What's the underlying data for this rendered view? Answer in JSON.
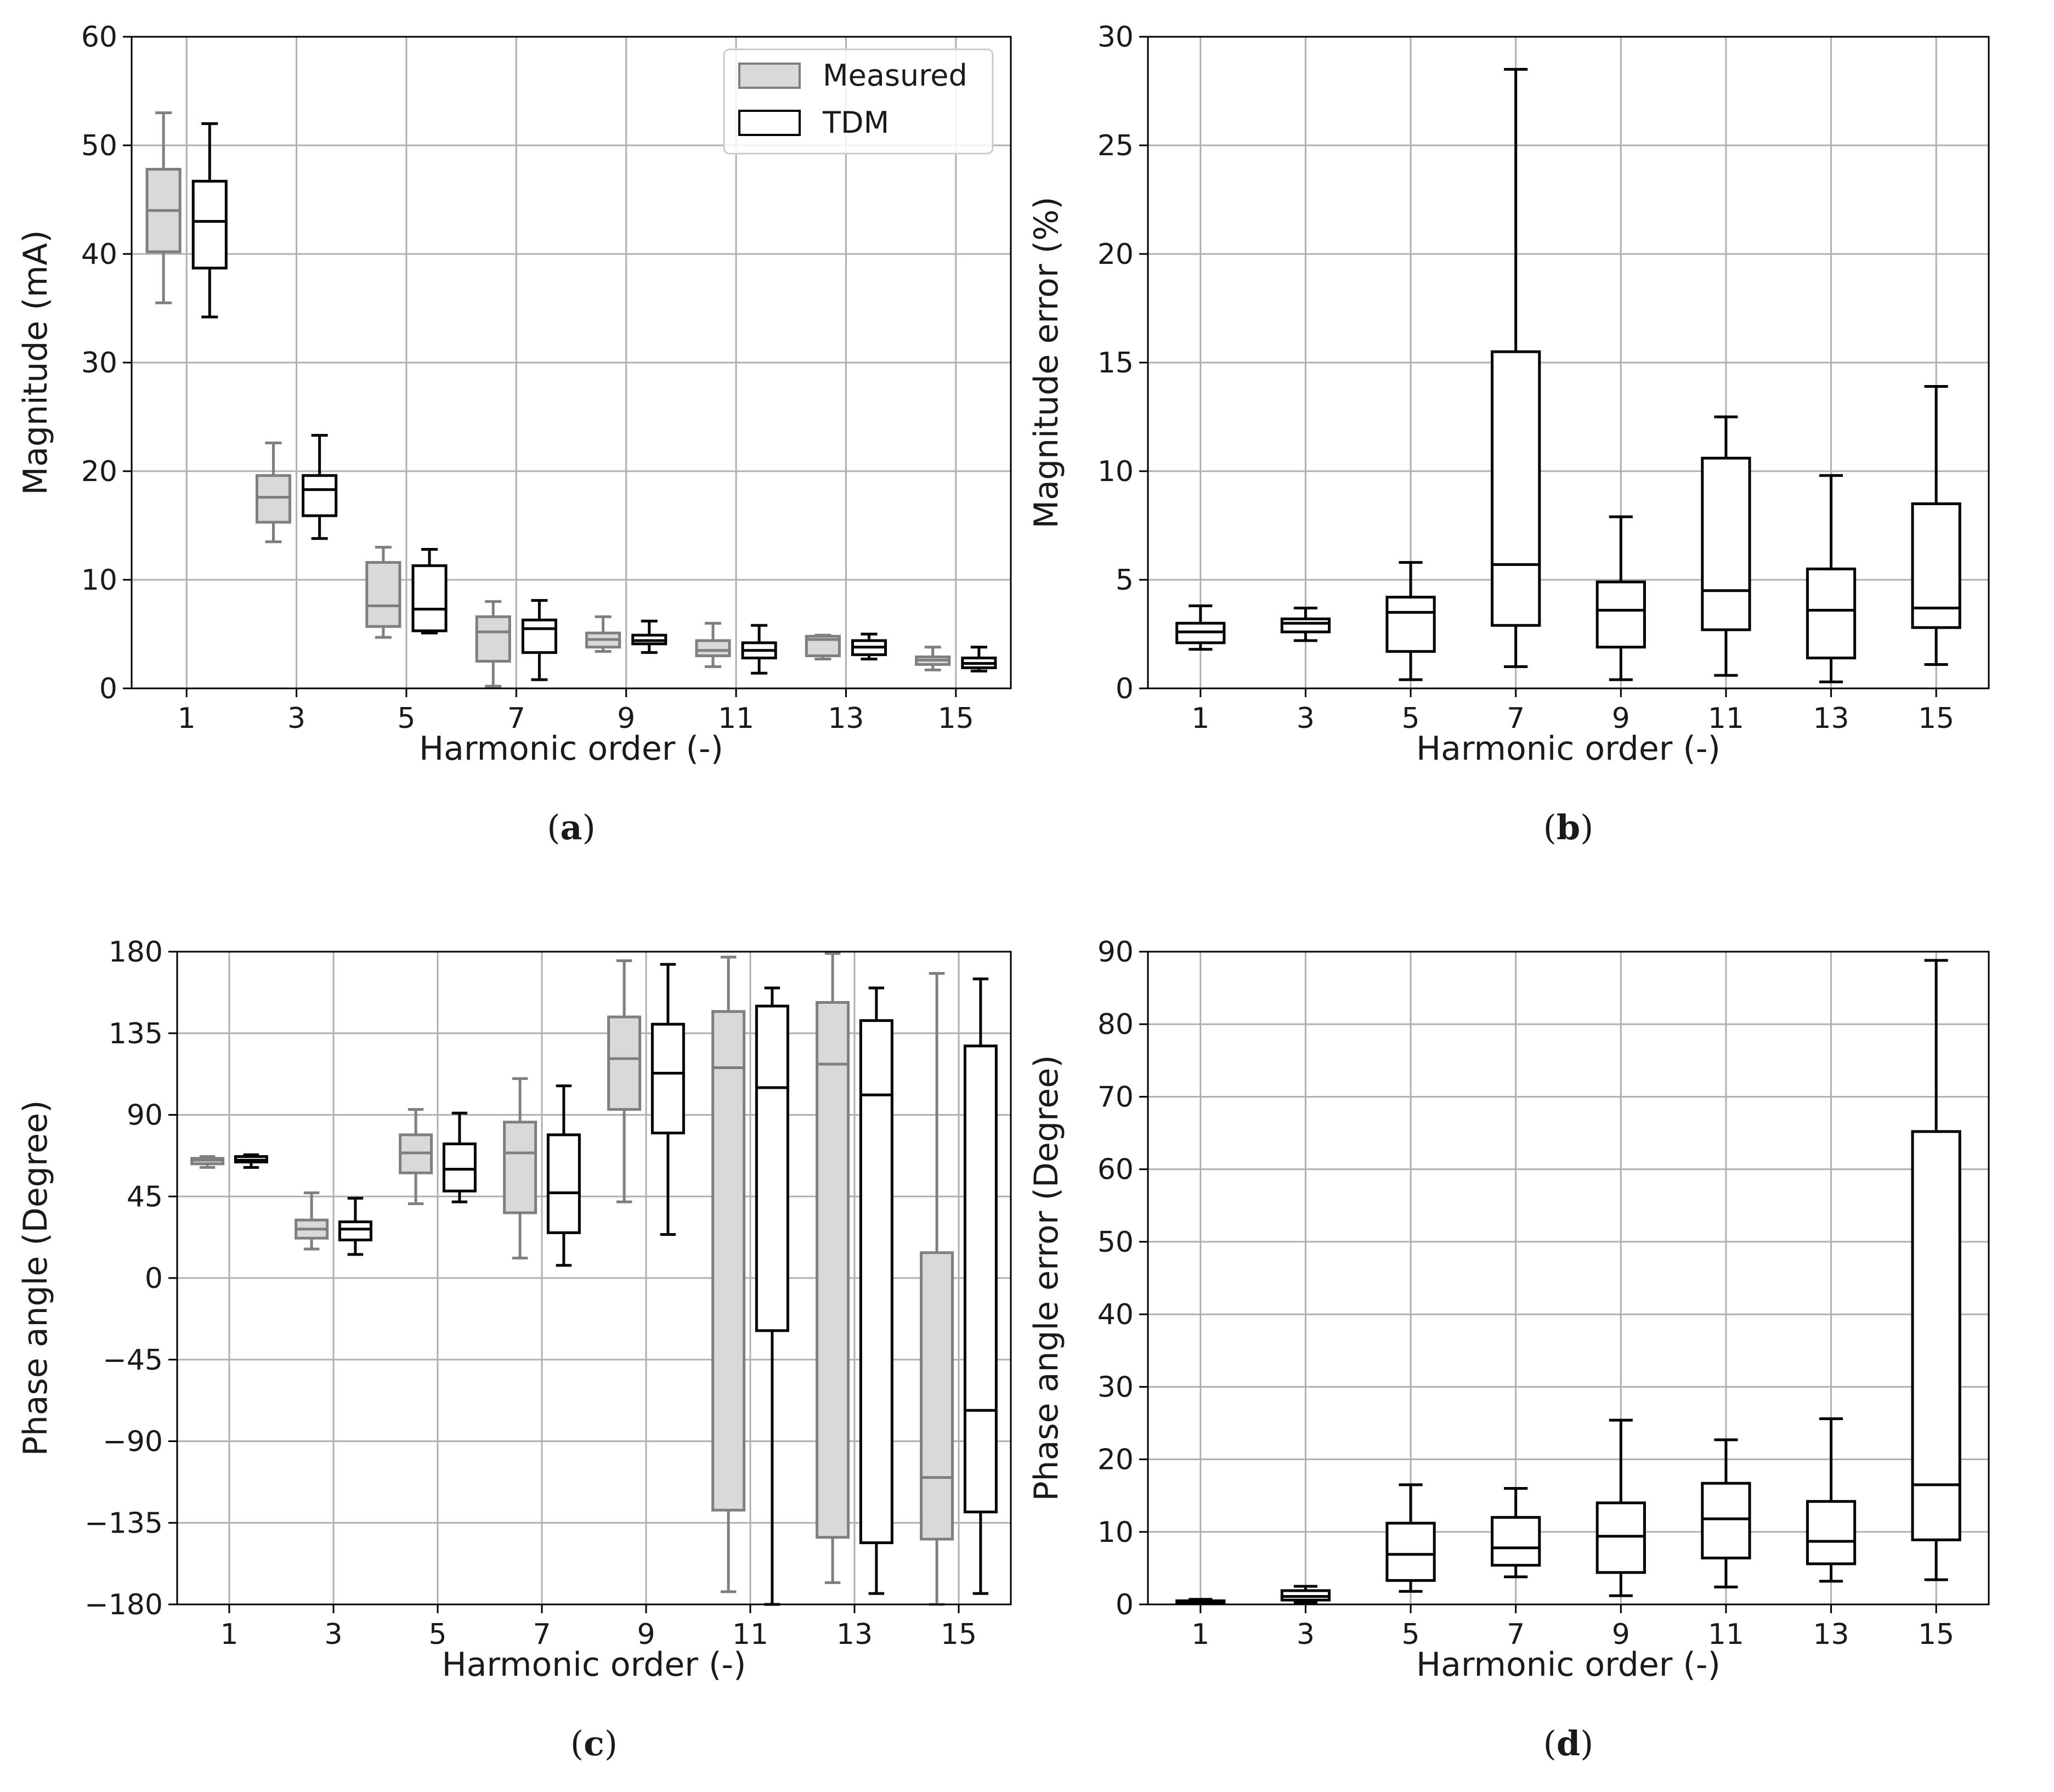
{
  "colors": {
    "measured_fill": "#d9d9d9",
    "measured_stroke": "#7f7f7f",
    "tdm_fill": "#ffffff",
    "tdm_stroke": "#000000",
    "grid": "#b0b0b0"
  },
  "chart_data": [
    {
      "id": "a",
      "type": "box",
      "caption": "a",
      "xlabel": "Harmonic order (-)",
      "ylabel": "Magnitude (mA)",
      "categories": [
        "1",
        "3",
        "5",
        "7",
        "9",
        "11",
        "13",
        "15"
      ],
      "ylim": [
        0,
        60
      ],
      "yticks": [
        "0",
        "10",
        "20",
        "30",
        "40",
        "50",
        "60"
      ],
      "legend": {
        "position": "top-right",
        "entries": [
          "Measured",
          "TDM"
        ]
      },
      "series": [
        {
          "name": "Measured",
          "boxes": [
            {
              "whislo": 35.5,
              "q1": 40.2,
              "med": 44.0,
              "q3": 47.8,
              "whishi": 53.0
            },
            {
              "whislo": 13.5,
              "q1": 15.3,
              "med": 17.6,
              "q3": 19.6,
              "whishi": 22.6
            },
            {
              "whislo": 4.7,
              "q1": 5.7,
              "med": 7.6,
              "q3": 11.6,
              "whishi": 13.0
            },
            {
              "whislo": 0.2,
              "q1": 2.5,
              "med": 5.2,
              "q3": 6.6,
              "whishi": 8.0
            },
            {
              "whislo": 3.4,
              "q1": 3.8,
              "med": 4.5,
              "q3": 5.1,
              "whishi": 6.6
            },
            {
              "whislo": 2.0,
              "q1": 3.0,
              "med": 3.5,
              "q3": 4.4,
              "whishi": 6.0
            },
            {
              "whislo": 2.7,
              "q1": 3.0,
              "med": 4.5,
              "q3": 4.8,
              "whishi": 4.9
            },
            {
              "whislo": 1.7,
              "q1": 2.2,
              "med": 2.6,
              "q3": 2.9,
              "whishi": 3.8
            }
          ]
        },
        {
          "name": "TDM",
          "boxes": [
            {
              "whislo": 34.2,
              "q1": 38.7,
              "med": 43.0,
              "q3": 46.7,
              "whishi": 52.0
            },
            {
              "whislo": 13.8,
              "q1": 15.9,
              "med": 18.3,
              "q3": 19.6,
              "whishi": 23.3
            },
            {
              "whislo": 5.1,
              "q1": 5.3,
              "med": 7.3,
              "q3": 11.3,
              "whishi": 12.8
            },
            {
              "whislo": 0.8,
              "q1": 3.3,
              "med": 5.5,
              "q3": 6.3,
              "whishi": 8.1
            },
            {
              "whislo": 3.3,
              "q1": 4.1,
              "med": 4.4,
              "q3": 4.9,
              "whishi": 6.2
            },
            {
              "whislo": 1.4,
              "q1": 2.8,
              "med": 3.5,
              "q3": 4.2,
              "whishi": 5.8
            },
            {
              "whislo": 2.7,
              "q1": 3.1,
              "med": 3.8,
              "q3": 4.4,
              "whishi": 5.0
            },
            {
              "whislo": 1.6,
              "q1": 1.9,
              "med": 2.3,
              "q3": 2.8,
              "whishi": 3.8
            }
          ]
        }
      ]
    },
    {
      "id": "b",
      "type": "box",
      "caption": "b",
      "xlabel": "Harmonic order (-)",
      "ylabel": "Magnitude error (%)",
      "categories": [
        "1",
        "3",
        "5",
        "7",
        "9",
        "11",
        "13",
        "15"
      ],
      "ylim": [
        0,
        30
      ],
      "yticks": [
        "0",
        "5",
        "10",
        "15",
        "20",
        "25",
        "30"
      ],
      "series": [
        {
          "name": "TDM",
          "boxes": [
            {
              "whislo": 1.8,
              "q1": 2.1,
              "med": 2.6,
              "q3": 3.0,
              "whishi": 3.8
            },
            {
              "whislo": 2.2,
              "q1": 2.6,
              "med": 3.0,
              "q3": 3.2,
              "whishi": 3.7
            },
            {
              "whislo": 0.4,
              "q1": 1.7,
              "med": 3.5,
              "q3": 4.2,
              "whishi": 5.8
            },
            {
              "whislo": 1.0,
              "q1": 2.9,
              "med": 5.7,
              "q3": 15.5,
              "whishi": 28.5
            },
            {
              "whislo": 0.4,
              "q1": 1.9,
              "med": 3.6,
              "q3": 4.9,
              "whishi": 7.9
            },
            {
              "whislo": 0.6,
              "q1": 2.7,
              "med": 4.5,
              "q3": 10.6,
              "whishi": 12.5
            },
            {
              "whislo": 0.3,
              "q1": 1.4,
              "med": 3.6,
              "q3": 5.5,
              "whishi": 9.8
            },
            {
              "whislo": 1.1,
              "q1": 2.8,
              "med": 3.7,
              "q3": 8.5,
              "whishi": 13.9
            }
          ]
        }
      ]
    },
    {
      "id": "c",
      "type": "box",
      "caption": "c",
      "xlabel": "Harmonic order (-)",
      "ylabel": "Phase angle (Degree)",
      "categories": [
        "1",
        "3",
        "5",
        "7",
        "9",
        "11",
        "13",
        "15"
      ],
      "ylim": [
        -180,
        180
      ],
      "yticks": [
        "−180",
        "−135",
        "−90",
        "−45",
        "0",
        "45",
        "90",
        "135",
        "180"
      ],
      "series": [
        {
          "name": "Measured",
          "boxes": [
            {
              "whislo": 61,
              "q1": 63,
              "med": 65,
              "q3": 66,
              "whishi": 67
            },
            {
              "whislo": 16,
              "q1": 22,
              "med": 27,
              "q3": 32,
              "whishi": 47
            },
            {
              "whislo": 41,
              "q1": 58,
              "med": 69,
              "q3": 79,
              "whishi": 93
            },
            {
              "whislo": 11,
              "q1": 36,
              "med": 69,
              "q3": 86,
              "whishi": 110
            },
            {
              "whislo": 42,
              "q1": 93,
              "med": 121,
              "q3": 144,
              "whishi": 175
            },
            {
              "whislo": -173,
              "q1": -128,
              "med": 116,
              "q3": 147,
              "whishi": 177
            },
            {
              "whislo": -168,
              "q1": -143,
              "med": 118,
              "q3": 152,
              "whishi": 179
            },
            {
              "whislo": -180,
              "q1": -144,
              "med": -110,
              "q3": 14,
              "whishi": 168
            }
          ]
        },
        {
          "name": "TDM",
          "boxes": [
            {
              "whislo": 61,
              "q1": 64,
              "med": 65,
              "q3": 67,
              "whishi": 68
            },
            {
              "whislo": 13,
              "q1": 21,
              "med": 27,
              "q3": 31,
              "whishi": 44
            },
            {
              "whislo": 42,
              "q1": 48,
              "med": 60,
              "q3": 74,
              "whishi": 91
            },
            {
              "whislo": 7,
              "q1": 25,
              "med": 47,
              "q3": 79,
              "whishi": 106
            },
            {
              "whislo": 24,
              "q1": 80,
              "med": 113,
              "q3": 140,
              "whishi": 173
            },
            {
              "whislo": -180,
              "q1": -29,
              "med": 105,
              "q3": 150,
              "whishi": 160
            },
            {
              "whislo": -174,
              "q1": -146,
              "med": 101,
              "q3": 142,
              "whishi": 160
            },
            {
              "whislo": -174,
              "q1": -129,
              "med": -73,
              "q3": 128,
              "whishi": 165
            }
          ]
        }
      ]
    },
    {
      "id": "d",
      "type": "box",
      "caption": "d",
      "xlabel": "Harmonic order (-)",
      "ylabel": "Phase angle error (Degree)",
      "categories": [
        "1",
        "3",
        "5",
        "7",
        "9",
        "11",
        "13",
        "15"
      ],
      "ylim": [
        0,
        90
      ],
      "yticks": [
        "0",
        "10",
        "20",
        "30",
        "40",
        "50",
        "60",
        "70",
        "80",
        "90"
      ],
      "series": [
        {
          "name": "TDM",
          "boxes": [
            {
              "whislo": 0.1,
              "q1": 0.2,
              "med": 0.3,
              "q3": 0.5,
              "whishi": 0.7
            },
            {
              "whislo": 0.3,
              "q1": 0.6,
              "med": 1.1,
              "q3": 1.9,
              "whishi": 2.5
            },
            {
              "whislo": 1.8,
              "q1": 3.3,
              "med": 6.9,
              "q3": 11.2,
              "whishi": 16.5
            },
            {
              "whislo": 3.8,
              "q1": 5.4,
              "med": 7.8,
              "q3": 12.0,
              "whishi": 16.0
            },
            {
              "whislo": 1.2,
              "q1": 4.4,
              "med": 9.4,
              "q3": 14.0,
              "whishi": 25.4
            },
            {
              "whislo": 2.4,
              "q1": 6.4,
              "med": 11.8,
              "q3": 16.7,
              "whishi": 22.7
            },
            {
              "whislo": 3.2,
              "q1": 5.6,
              "med": 8.7,
              "q3": 14.2,
              "whishi": 25.6
            },
            {
              "whislo": 3.4,
              "q1": 8.9,
              "med": 16.5,
              "q3": 65.2,
              "whishi": 88.8
            }
          ]
        }
      ]
    }
  ]
}
